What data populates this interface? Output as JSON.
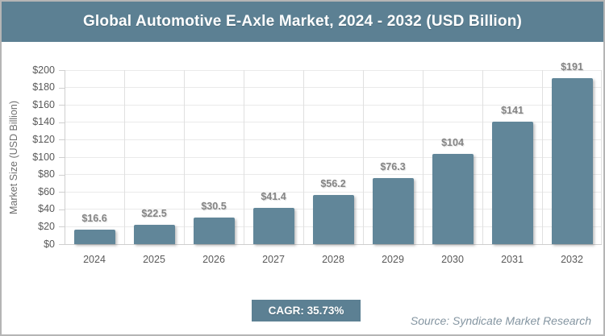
{
  "header": {
    "title": "Global Automotive E-Axle Market, 2024 - 2032 (USD Billion)"
  },
  "chart_data": {
    "type": "bar",
    "title": "Global Automotive E-Axle Market, 2024 - 2032 (USD Billion)",
    "categories": [
      "2024",
      "2025",
      "2026",
      "2027",
      "2028",
      "2029",
      "2030",
      "2031",
      "2032"
    ],
    "values": [
      16.6,
      22.5,
      30.5,
      41.4,
      56.2,
      76.3,
      104,
      141,
      191
    ],
    "value_labels": [
      "$16.6",
      "$22.5",
      "$30.5",
      "$41.4",
      "$56.2",
      "$76.3",
      "$104",
      "$141",
      "$191"
    ],
    "xlabel": "",
    "ylabel": "Market Size (USD Billion)",
    "ylim": [
      0,
      200
    ],
    "ytick_step": 20,
    "ytick_prefix": "$",
    "grid": true,
    "legend": false
  },
  "footer": {
    "cagr_label": "CAGR: 35.73%",
    "source": "Source: Syndicate Market Research"
  },
  "colors": {
    "slate": "#5c8093",
    "bar": "#618699",
    "grid": "#eaeaea",
    "gridv": "#e0e0e0",
    "axis": "#cfcfcf",
    "source": "#8495a1",
    "border": "#b5b5b5"
  }
}
